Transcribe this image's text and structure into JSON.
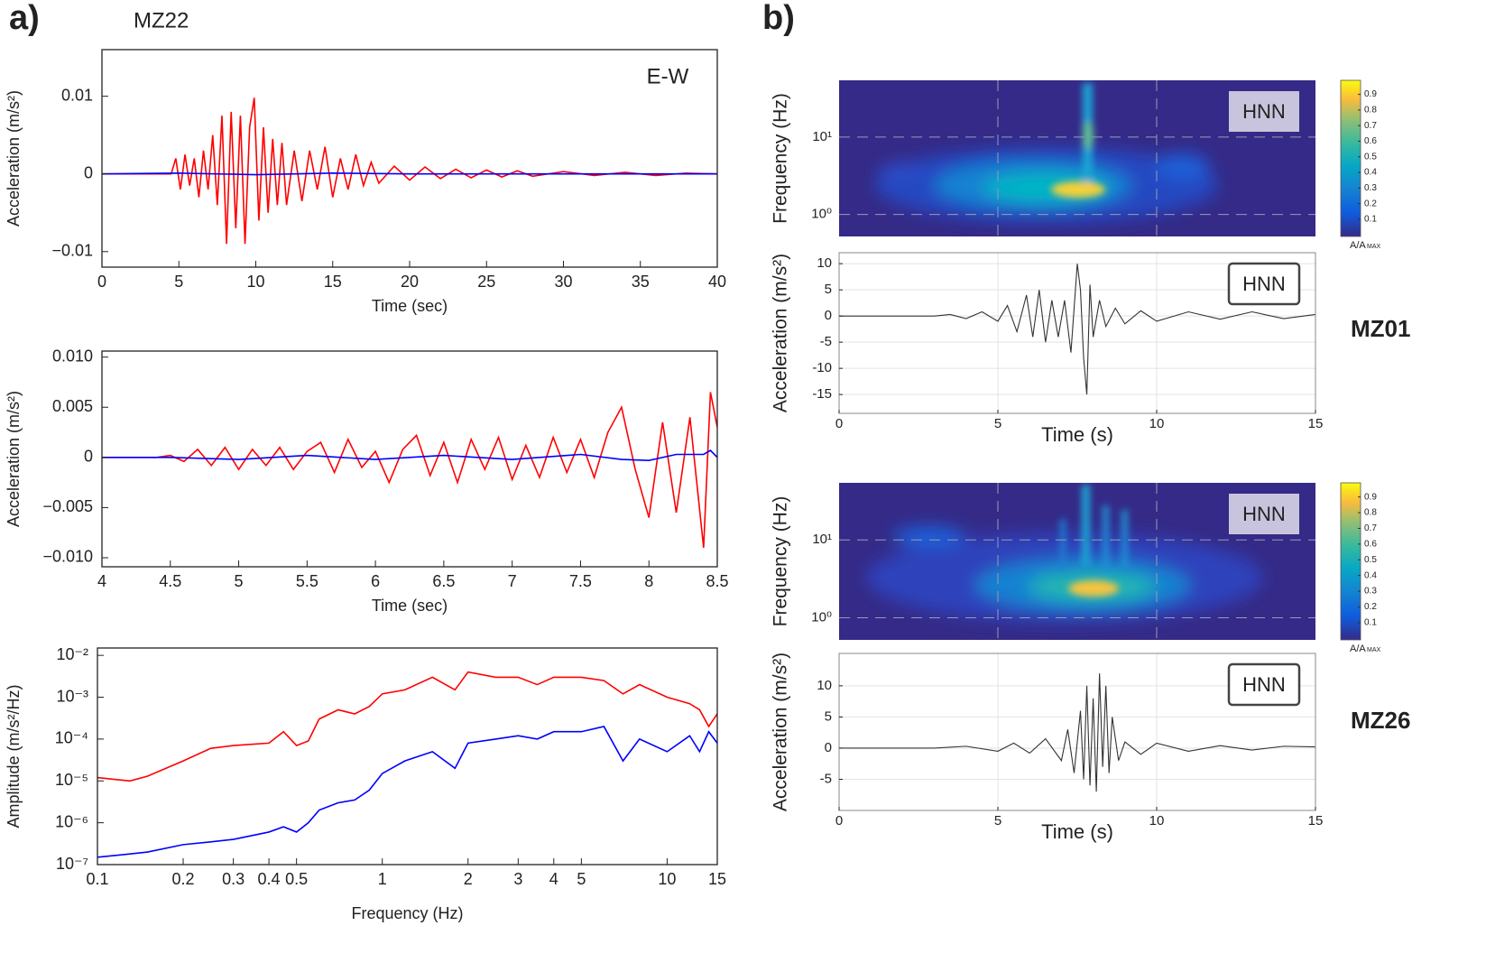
{
  "panels": {
    "a": {
      "label": "a)",
      "station": "MZ22"
    },
    "b": {
      "label": "b)"
    }
  },
  "chart_data": [
    {
      "type": "line",
      "xlabel": "Time (sec)",
      "ylabel": "Acceleration (m/s²)",
      "annotation": "E-W",
      "xlim": [
        0,
        40
      ],
      "xticks": [
        0,
        5,
        10,
        15,
        20,
        25,
        30,
        35,
        40
      ],
      "ylim": [
        -0.012,
        0.016
      ],
      "yticks": [
        {
          "value": -0.01,
          "label": "−0.01"
        },
        0,
        0.01
      ],
      "series": [
        {
          "color": "#ff0000",
          "x": [
            0,
            4.5,
            4.8,
            5.1,
            5.4,
            5.7,
            6.0,
            6.3,
            6.6,
            6.9,
            7.2,
            7.5,
            7.8,
            8.1,
            8.4,
            8.7,
            9.0,
            9.3,
            9.6,
            9.9,
            10.2,
            10.5,
            10.8,
            11.1,
            11.4,
            11.7,
            12.0,
            12.5,
            13,
            13.5,
            14,
            14.5,
            15,
            15.5,
            16,
            16.5,
            17,
            17.5,
            18,
            19,
            20,
            21,
            22,
            23,
            24,
            25,
            26,
            27,
            28,
            30,
            32,
            34,
            36,
            38,
            40
          ],
          "values": [
            0,
            0,
            0.002,
            -0.002,
            0.0025,
            -0.0015,
            0.002,
            -0.003,
            0.003,
            -0.002,
            0.005,
            -0.004,
            0.0075,
            -0.009,
            0.008,
            -0.007,
            0.0075,
            -0.009,
            0.006,
            0.0098,
            -0.006,
            0.006,
            -0.005,
            0.0045,
            -0.004,
            0.004,
            -0.004,
            0.003,
            -0.0035,
            0.003,
            -0.002,
            0.0035,
            -0.003,
            0.002,
            -0.002,
            0.0025,
            -0.0015,
            0.0015,
            -0.0012,
            0.001,
            -0.0008,
            0.0009,
            -0.0006,
            0.0006,
            -0.0005,
            0.0005,
            -0.0004,
            0.0004,
            -0.0003,
            0.0003,
            -0.0002,
            0.0002,
            -0.0002,
            0.0001,
            0
          ]
        },
        {
          "color": "#0000ff",
          "x": [
            0,
            5,
            10,
            15,
            20,
            30,
            40
          ],
          "values": [
            0,
            0.0001,
            -0.0001,
            0.0001,
            0,
            0,
            0
          ]
        }
      ]
    },
    {
      "type": "line",
      "xlabel": "Time (sec)",
      "ylabel": "Acceleration (m/s²)",
      "xlim": [
        4,
        8.5
      ],
      "xticks": [
        4,
        4.5,
        5,
        5.5,
        6,
        6.5,
        7,
        7.5,
        8,
        8.5
      ],
      "ylim": [
        -0.0109,
        0.0106
      ],
      "yticks": [
        {
          "value": -0.01,
          "label": "−0.010"
        },
        {
          "value": -0.005,
          "label": "−0.005"
        },
        0,
        0.005,
        {
          "value": 0.01,
          "label": "0.010"
        }
      ],
      "series": [
        {
          "color": "#ff0000",
          "x": [
            4,
            4.4,
            4.5,
            4.6,
            4.7,
            4.8,
            4.9,
            5.0,
            5.1,
            5.2,
            5.3,
            5.4,
            5.5,
            5.6,
            5.7,
            5.8,
            5.9,
            6.0,
            6.1,
            6.2,
            6.3,
            6.4,
            6.5,
            6.6,
            6.7,
            6.8,
            6.9,
            7.0,
            7.1,
            7.2,
            7.3,
            7.4,
            7.5,
            7.6,
            7.7,
            7.8,
            7.9,
            8.0,
            8.1,
            8.2,
            8.3,
            8.4,
            8.45,
            8.5
          ],
          "values": [
            0,
            0,
            0.0002,
            -0.0004,
            0.0008,
            -0.0008,
            0.001,
            -0.0012,
            0.0008,
            -0.0008,
            0.001,
            -0.0012,
            0.0006,
            0.0015,
            -0.0015,
            0.0018,
            -0.001,
            0.0006,
            -0.0025,
            0.0008,
            0.0022,
            -0.0018,
            0.0015,
            -0.0025,
            0.0018,
            -0.0012,
            0.002,
            -0.0022,
            0.0012,
            -0.002,
            0.002,
            -0.0015,
            0.0018,
            -0.002,
            0.0025,
            0.005,
            -0.0012,
            -0.006,
            0.0035,
            -0.0055,
            0.004,
            -0.009,
            0.0065,
            0.003
          ]
        },
        {
          "color": "#0000ff",
          "x": [
            4,
            4.5,
            5,
            5.5,
            6,
            6.5,
            7,
            7.5,
            7.8,
            8,
            8.2,
            8.4,
            8.45,
            8.5
          ],
          "values": [
            0,
            0,
            -0.0002,
            0.0002,
            -0.0002,
            0.0002,
            -0.0002,
            0.0003,
            -0.0002,
            -0.0003,
            0.0003,
            0.0003,
            0.0007,
            0
          ]
        }
      ]
    },
    {
      "type": "line",
      "xlabel": "Frequency (Hz)",
      "ylabel": "Amplitude (m/s²/Hz)",
      "xscale": "log",
      "yscale": "log",
      "xlim": [
        0.1,
        15
      ],
      "xticks": [
        0.1,
        0.2,
        0.3,
        0.4,
        0.5,
        1,
        2,
        3,
        4,
        5,
        10,
        15
      ],
      "ylim": [
        1e-07,
        0.015
      ],
      "yticks": [
        {
          "value": 1e-07,
          "label": "10⁻⁷"
        },
        {
          "value": 1e-06,
          "label": "10⁻⁶"
        },
        {
          "value": 1e-05,
          "label": "10⁻⁵"
        },
        {
          "value": 0.0001,
          "label": "10⁻⁴"
        },
        {
          "value": 0.001,
          "label": "10⁻³"
        },
        {
          "value": 0.01,
          "label": "10⁻²"
        }
      ],
      "series": [
        {
          "color": "#ff0000",
          "x": [
            0.1,
            0.13,
            0.15,
            0.2,
            0.25,
            0.3,
            0.4,
            0.45,
            0.5,
            0.55,
            0.6,
            0.7,
            0.8,
            0.9,
            1,
            1.2,
            1.5,
            1.8,
            2,
            2.5,
            3,
            3.5,
            4,
            5,
            6,
            7,
            8,
            10,
            12,
            13,
            14,
            15
          ],
          "values": [
            1.2e-05,
            1e-05,
            1.3e-05,
            3e-05,
            6e-05,
            7e-05,
            8e-05,
            0.00015,
            7e-05,
            9e-05,
            0.0003,
            0.0005,
            0.0004,
            0.0006,
            0.0012,
            0.0015,
            0.003,
            0.0015,
            0.004,
            0.003,
            0.003,
            0.002,
            0.003,
            0.003,
            0.0025,
            0.0012,
            0.002,
            0.001,
            0.0007,
            0.0005,
            0.0002,
            0.0004
          ]
        },
        {
          "color": "#0000ff",
          "x": [
            0.1,
            0.13,
            0.15,
            0.2,
            0.25,
            0.3,
            0.4,
            0.45,
            0.5,
            0.55,
            0.6,
            0.7,
            0.8,
            0.9,
            1,
            1.2,
            1.5,
            1.8,
            2,
            2.5,
            3,
            3.5,
            4,
            5,
            6,
            7,
            8,
            10,
            12,
            13,
            14,
            15
          ],
          "values": [
            1.5e-07,
            1.8e-07,
            2e-07,
            3e-07,
            3.5e-07,
            4e-07,
            6e-07,
            8e-07,
            6e-07,
            1e-06,
            2e-06,
            3e-06,
            3.5e-06,
            6e-06,
            1.5e-05,
            3e-05,
            5e-05,
            2e-05,
            8e-05,
            0.0001,
            0.00012,
            0.0001,
            0.00015,
            0.00015,
            0.0002,
            3e-05,
            0.0001,
            5e-05,
            0.00012,
            5e-05,
            0.00015,
            8e-05
          ]
        }
      ]
    },
    {
      "type": "spectrogram",
      "ylabel": "Frequency (Hz)",
      "annotation": "HNN",
      "yscale": "log",
      "xlim": [
        0,
        15
      ],
      "ylim": [
        0.52,
        54
      ],
      "yticks": [
        {
          "value": 1,
          "label": "10⁰"
        },
        {
          "value": 10,
          "label": "10¹"
        }
      ],
      "colorbar": {
        "lim": [
          -0.01,
          0.99
        ],
        "ticks": [
          0.1,
          0.2,
          0.3,
          0.4,
          0.5,
          0.6,
          0.7,
          0.8,
          0.9
        ],
        "label": "A/A",
        "label_sub": "MAX"
      }
    },
    {
      "type": "line",
      "xlabel": "Time (s)",
      "ylabel": "Acceleration (m/s²)",
      "annotation": "HNN",
      "station": "MZ01",
      "grid": true,
      "xlim": [
        0,
        15
      ],
      "xticks": [
        0,
        5,
        10,
        15
      ],
      "ylim": [
        -18.6,
        12.1
      ],
      "yticks": [
        -15,
        -10,
        -5,
        0,
        5,
        10
      ],
      "series": [
        {
          "color": "#333333",
          "x": [
            0,
            3,
            3.5,
            4,
            4.5,
            5,
            5.3,
            5.6,
            5.9,
            6.1,
            6.3,
            6.5,
            6.7,
            6.9,
            7.1,
            7.3,
            7.5,
            7.6,
            7.7,
            7.8,
            7.9,
            8.0,
            8.2,
            8.4,
            8.7,
            9,
            9.5,
            10,
            11,
            12,
            13,
            14,
            15
          ],
          "values": [
            0,
            0,
            0.3,
            -0.5,
            0.8,
            -1,
            2,
            -3,
            4,
            -4,
            5,
            -5,
            3,
            -4,
            3,
            -7,
            10,
            5,
            -8,
            -15,
            6,
            -4,
            3,
            -2,
            1.5,
            -1.5,
            1,
            -1,
            0.8,
            -0.6,
            0.8,
            -0.5,
            0.3
          ]
        }
      ]
    },
    {
      "type": "spectrogram",
      "ylabel": "Frequency (Hz)",
      "annotation": "HNN",
      "yscale": "log",
      "xlim": [
        0,
        15
      ],
      "ylim": [
        0.52,
        54
      ],
      "yticks": [
        {
          "value": 1,
          "label": "10⁰"
        },
        {
          "value": 10,
          "label": "10¹"
        }
      ],
      "colorbar": {
        "lim": [
          -0.01,
          0.99
        ],
        "ticks": [
          0.1,
          0.2,
          0.3,
          0.4,
          0.5,
          0.6,
          0.7,
          0.8,
          0.9
        ],
        "label": "A/A",
        "label_sub": "MAX"
      }
    },
    {
      "type": "line",
      "xlabel": "Time (s)",
      "ylabel": "Acceleration (m/s²)",
      "annotation": "HNN",
      "station": "MZ26",
      "grid": true,
      "xlim": [
        0,
        15
      ],
      "xticks": [
        0,
        5,
        10,
        15
      ],
      "ylim": [
        -10,
        15.2
      ],
      "yticks": [
        -5,
        0,
        5,
        10
      ],
      "series": [
        {
          "color": "#333333",
          "x": [
            0,
            3,
            4,
            5,
            5.5,
            6,
            6.5,
            7,
            7.2,
            7.4,
            7.6,
            7.7,
            7.8,
            7.9,
            8.0,
            8.1,
            8.2,
            8.3,
            8.4,
            8.5,
            8.6,
            8.8,
            9,
            9.5,
            10,
            11,
            12,
            13,
            14,
            15
          ],
          "values": [
            0,
            0,
            0.3,
            -0.5,
            0.8,
            -0.8,
            1.5,
            -2,
            3,
            -4,
            6,
            -5,
            10,
            -6,
            8,
            -7,
            12,
            -3,
            10,
            -4,
            5,
            -2,
            1,
            -1,
            0.8,
            -0.5,
            0.4,
            -0.3,
            0.3,
            0.2
          ]
        }
      ]
    }
  ]
}
